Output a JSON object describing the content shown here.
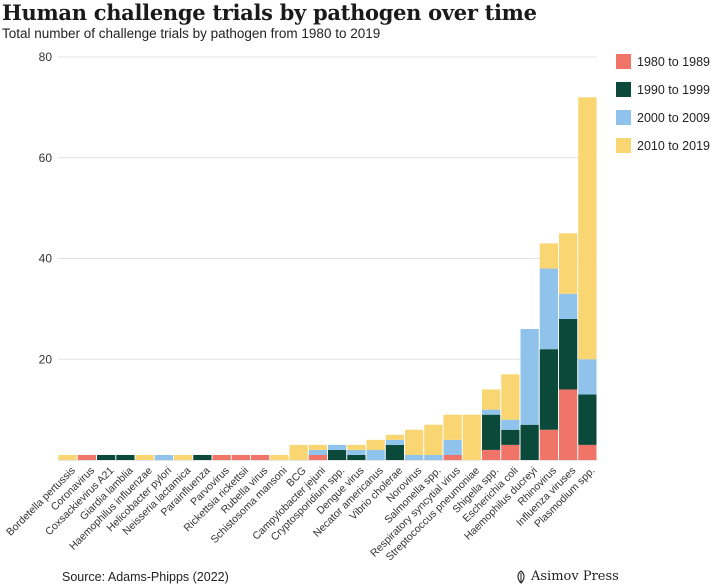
{
  "chart_data": {
    "type": "bar",
    "stacked": true,
    "title": "Human challenge trials by pathogen over time",
    "subtitle": "Total number of challenge trials by pathogen from 1980 to 2019",
    "ylim": [
      0,
      80
    ],
    "yticks": [
      20,
      40,
      60,
      80
    ],
    "grid": true,
    "legend_position": "right",
    "categories": [
      "Bordetella pertussis",
      "Coronavirus",
      "Coxsackievirus A21",
      "Giardia lamblia",
      "Haemophilus influenzae",
      "Helicobacter pylori",
      "Neisseria lactamica",
      "Parainfluenza",
      "Parvovirus",
      "Rickettsia rickettsii",
      "Rubella virus",
      "Schistosoma mansoni",
      "BCG",
      "Campylobacter jejuni",
      "Cryptosporidium spp.",
      "Dengue virus",
      "Necator americanus",
      "Vibrio cholerae",
      "Norovirus",
      "Salmonella spp.",
      "Respiratory syncytial virus",
      "Streptococcus pneumoniae",
      "Shigella spp.",
      "Escherichia coli",
      "Haemophilus ducreyi",
      "Rhinovirus",
      "Influenza viruses",
      "Plasmodium spp."
    ],
    "series": [
      {
        "name": "1980 to 1989",
        "color": "#f07467",
        "values": [
          0,
          1,
          0,
          0,
          0,
          0,
          0,
          0,
          1,
          1,
          1,
          0,
          0,
          1,
          0,
          0,
          0,
          0,
          0,
          0,
          1,
          0,
          2,
          3,
          0,
          6,
          14,
          3
        ]
      },
      {
        "name": "1990 to 1999",
        "color": "#0b4a3b",
        "values": [
          0,
          0,
          1,
          1,
          0,
          0,
          0,
          1,
          0,
          0,
          0,
          0,
          0,
          0,
          2,
          1,
          0,
          3,
          0,
          0,
          0,
          0,
          7,
          3,
          7,
          16,
          14,
          10
        ]
      },
      {
        "name": "2000 to 2009",
        "color": "#8fc3ec",
        "values": [
          0,
          0,
          0,
          0,
          0,
          1,
          0,
          0,
          0,
          0,
          0,
          0,
          0,
          1,
          1,
          1,
          2,
          1,
          1,
          1,
          3,
          0,
          1,
          2,
          19,
          16,
          5,
          7
        ]
      },
      {
        "name": "2010 to 2019",
        "color": "#f9d671",
        "values": [
          1,
          0,
          0,
          0,
          1,
          0,
          1,
          0,
          0,
          0,
          0,
          1,
          3,
          1,
          0,
          1,
          2,
          1,
          5,
          6,
          5,
          9,
          4,
          9,
          0,
          5,
          12,
          52
        ]
      }
    ]
  },
  "footer": {
    "source": "Source: Adams-Phipps (2022)",
    "brand": "Asimov Press"
  }
}
